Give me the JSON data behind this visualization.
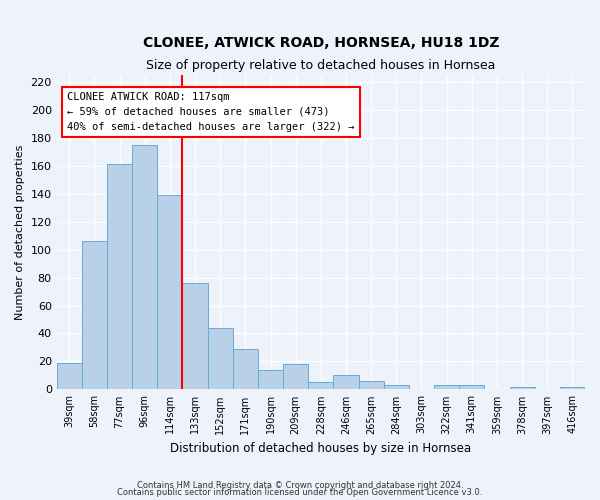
{
  "title": "CLONEE, ATWICK ROAD, HORNSEA, HU18 1DZ",
  "subtitle": "Size of property relative to detached houses in Hornsea",
  "xlabel": "Distribution of detached houses by size in Hornsea",
  "ylabel": "Number of detached properties",
  "footnote1": "Contains HM Land Registry data © Crown copyright and database right 2024.",
  "footnote2": "Contains public sector information licensed under the Open Government Licence v3.0.",
  "categories": [
    "39sqm",
    "58sqm",
    "77sqm",
    "96sqm",
    "114sqm",
    "133sqm",
    "152sqm",
    "171sqm",
    "190sqm",
    "209sqm",
    "228sqm",
    "246sqm",
    "265sqm",
    "284sqm",
    "303sqm",
    "322sqm",
    "341sqm",
    "359sqm",
    "378sqm",
    "397sqm",
    "416sqm"
  ],
  "values": [
    19,
    106,
    161,
    175,
    139,
    76,
    44,
    29,
    14,
    18,
    5,
    10,
    6,
    3,
    0,
    3,
    3,
    0,
    2,
    0,
    2
  ],
  "bar_color": "#b8d0e8",
  "bar_edge_color": "#6aaad4",
  "red_line_x": 4.5,
  "annotation_line1": "CLONEE ATWICK ROAD: 117sqm",
  "annotation_line2": "← 59% of detached houses are smaller (473)",
  "annotation_line3": "40% of semi-detached houses are larger (322) →",
  "ylim": [
    0,
    225
  ],
  "yticks": [
    0,
    20,
    40,
    60,
    80,
    100,
    120,
    140,
    160,
    180,
    200,
    220
  ],
  "background_color": "#eef2fa",
  "grid_color": "#ffffff",
  "title_fontsize": 10,
  "subtitle_fontsize": 9,
  "ylabel_fontsize": 8,
  "xlabel_fontsize": 8.5
}
